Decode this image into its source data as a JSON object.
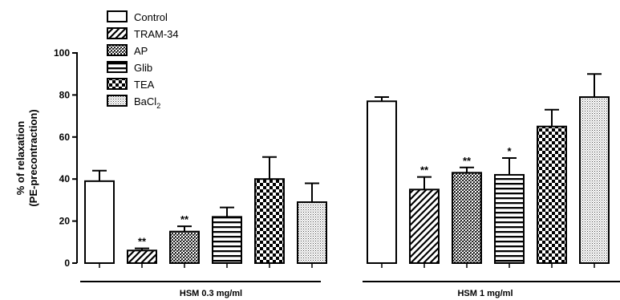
{
  "chart_data": {
    "type": "bar",
    "ylabel_lines": [
      "% of relaxation",
      "(PE-precontraction)"
    ],
    "ylim": [
      0,
      100
    ],
    "yticks": [
      "0",
      "20",
      "40",
      "60",
      "80",
      "100"
    ],
    "groups": [
      {
        "label": "HSM 0.3 mg/ml",
        "values": [
          39,
          6,
          15,
          22,
          40,
          29
        ],
        "errors": [
          5,
          1,
          2.5,
          4.5,
          10.5,
          9
        ],
        "significance": [
          "",
          "**",
          "**",
          "",
          "",
          ""
        ]
      },
      {
        "label": "HSM 1 mg/ml",
        "values": [
          77,
          35,
          43,
          42,
          65,
          79
        ],
        "errors": [
          2,
          6,
          2.5,
          8,
          8,
          11
        ],
        "significance": [
          "",
          "**",
          "**",
          "*",
          "",
          ""
        ]
      }
    ],
    "legend": [
      {
        "label": "Control",
        "pattern": "open"
      },
      {
        "label": "TRAM-34",
        "pattern": "diagonal-hatch"
      },
      {
        "label": "AP",
        "pattern": "dense-crosshatch"
      },
      {
        "label": "Glib",
        "pattern": "horizontal-lines"
      },
      {
        "label": "TEA",
        "pattern": "checkerboard"
      },
      {
        "label": "BaCl",
        "subscript": "2",
        "pattern": "dotted"
      }
    ],
    "legend_position": "top-left",
    "grid": false
  }
}
